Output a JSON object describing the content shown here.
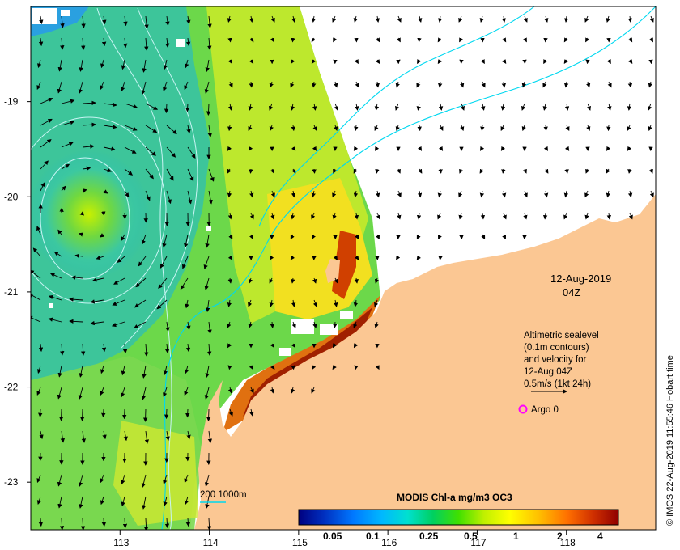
{
  "map": {
    "lon_ticks": [
      "113",
      "114",
      "115",
      "116",
      "117",
      "118"
    ],
    "lat_ticks": [
      "-19",
      "-20",
      "-21",
      "-22",
      "-23"
    ],
    "lon_range": [
      112.0,
      119.0
    ],
    "lat_range": [
      -18.0,
      -23.5
    ]
  },
  "annotations": {
    "date": "12-Aug-2019",
    "time": "04Z",
    "legend_lines": [
      "Altimetric sealevel",
      "(0.1m contours)",
      "and velocity for",
      "12-Aug 04Z",
      "0.5m/s (1kt 24h)"
    ],
    "argo_label": "Argo 0",
    "depth_label": "200  1000m"
  },
  "colorbar": {
    "title": "MODIS Chl-a mg/m3 OC3",
    "ticks": [
      "0.05",
      "0.1",
      "0.25",
      "0.5",
      "1",
      "2",
      "4"
    ],
    "colors": [
      "#000080",
      "#0030c0",
      "#0078ff",
      "#00b8ff",
      "#00e0d0",
      "#00d060",
      "#40e000",
      "#c0f000",
      "#ffff00",
      "#ffc000",
      "#ff7000",
      "#d03000",
      "#900000"
    ]
  },
  "credit": "© IMOS 22-Aug-2019 11:55:46 Hobart time",
  "colors": {
    "land": "#fbc793",
    "ocean_green": "#6cd84a",
    "ocean_cyan": "#2fc0b0",
    "contour": "#00e0f0",
    "argo": "#ff00ff"
  }
}
